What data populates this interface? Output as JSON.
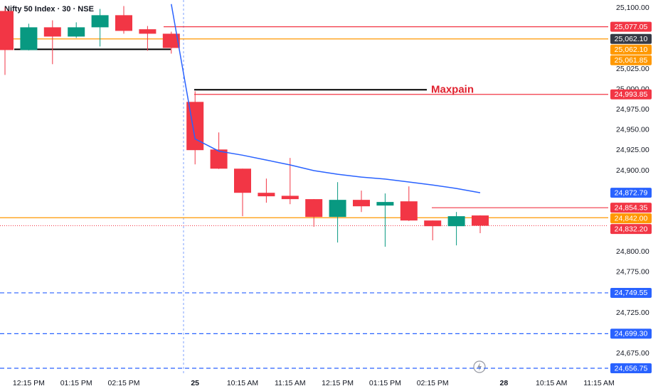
{
  "chart_data": {
    "type": "candlestick",
    "title": "Nifty 50 Index · 30 · NSE",
    "categories": [
      null,
      "12:15 PM",
      null,
      "01:15 PM",
      null,
      "02:15 PM",
      null,
      null,
      "25",
      null,
      "10:15 AM",
      null,
      "11:15 AM",
      null,
      "12:15 PM",
      null,
      "01:15 PM",
      null,
      "02:15 PM",
      null,
      null,
      "28",
      null,
      "10:15 AM",
      null,
      "11:15 AM"
    ],
    "open": [
      25096.5,
      25048.4,
      25076.4,
      25065,
      25076.4,
      25091.3,
      25074,
      25068.5,
      24984.6,
      24926,
      24902.4,
      24872.7,
      24869,
      24864.9,
      24843,
      24864,
      24857,
      24862.2,
      24838.6,
      24831.6,
      24844.8,
      null,
      null,
      null,
      null,
      null
    ],
    "high": [
      25100.9,
      25080.8,
      25085,
      25082.5,
      25099,
      25102.6,
      25078,
      25071,
      24997.7,
      24947,
      24902.4,
      24890.2,
      24915.6,
      24865,
      24885.8,
      24875.4,
      24871.9,
      24880.6,
      24838.6,
      24849.1,
      24845,
      null,
      null,
      null,
      null,
      null
    ],
    "low": [
      25017.8,
      25048,
      25031,
      25063.3,
      25052.8,
      25068.5,
      25047.6,
      25044,
      24907.7,
      24902,
      24843.9,
      24860.5,
      24858.7,
      24830.8,
      24811.5,
      24849,
      24806.3,
      24838,
      24814.2,
      24808,
      24823,
      null,
      null,
      null,
      null,
      null
    ],
    "close": [
      25048.4,
      25076.4,
      25065,
      25076.4,
      25091.3,
      25072,
      25068.5,
      25051,
      24925.2,
      24902.4,
      24872.7,
      24868.4,
      24864.9,
      24843,
      24864,
      24856.1,
      24861.4,
      24838.6,
      24831.6,
      24843.9,
      24832.2,
      null,
      null,
      null,
      null,
      null
    ],
    "up_color": "#089981",
    "down_color": "#f23645",
    "ma": {
      "color": "#2962ff",
      "values": [
        null,
        null,
        null,
        null,
        null,
        null,
        null,
        25105,
        24939,
        24924,
        24919,
        24913,
        24907,
        24900,
        24895.5,
        24892,
        24889.6,
        24886,
        24882.3,
        24878,
        24872.79,
        null,
        null,
        null,
        null,
        null
      ]
    },
    "ylim": [
      24648,
      25110
    ],
    "yticks": [
      {
        "value": 25100,
        "label": "25,100.00"
      },
      {
        "value": 25025,
        "label": "25,025.00"
      },
      {
        "value": 25000,
        "label": "25,000.00"
      },
      {
        "value": 24975,
        "label": "24,975.00"
      },
      {
        "value": 24950,
        "label": "24,950.00"
      },
      {
        "value": 24925,
        "label": "24,925.00"
      },
      {
        "value": 24900,
        "label": "24,900.00"
      },
      {
        "value": 24800,
        "label": "24,800.00"
      },
      {
        "value": 24775,
        "label": "24,775.00"
      },
      {
        "value": 24725,
        "label": "24,725.00"
      },
      {
        "value": 24675,
        "label": "24,675.00"
      }
    ],
    "levels": [
      {
        "value": 25077.05,
        "label": "25,077.05",
        "color": "#f23645",
        "line": "solid"
      },
      {
        "value": 25062.1,
        "label": "25,062.10",
        "color": "#363a45",
        "line": "none"
      },
      {
        "value": 25062.1,
        "label": "25,062.10",
        "color": "#ff9800",
        "line": "solid"
      },
      {
        "value": 25061.85,
        "label": "25,061.85",
        "color": "#ff9800",
        "line": "none"
      },
      {
        "value": 24993.85,
        "label": "24,993.85",
        "color": "#f23645",
        "line": "solid"
      },
      {
        "value": 24872.79,
        "label": "24,872.79",
        "color": "#2962ff",
        "line": "none"
      },
      {
        "value": 24854.35,
        "label": "24,854.35",
        "color": "#f23645",
        "line": "solid"
      },
      {
        "value": 24842.0,
        "label": "24,842.00",
        "color": "#ff9800",
        "line": "solid"
      },
      {
        "value": 24832.2,
        "label": "24,832.20",
        "color": "#f23645",
        "line": "dotted"
      },
      {
        "value": 24749.55,
        "label": "24,749.55",
        "color": "#2962ff",
        "line": "dashed"
      },
      {
        "value": 24699.3,
        "label": "24,699.30",
        "color": "#2962ff",
        "line": "dashed"
      },
      {
        "value": 24656.75,
        "label": "24,656.75",
        "color": "#2962ff",
        "line": "dashed"
      }
    ],
    "hlines": [
      {
        "value": 25049.3,
        "color": "#000000"
      },
      {
        "value": 24999.5,
        "color": "#000000",
        "text": "Maxpain",
        "text_color": "#e0222f"
      }
    ]
  }
}
